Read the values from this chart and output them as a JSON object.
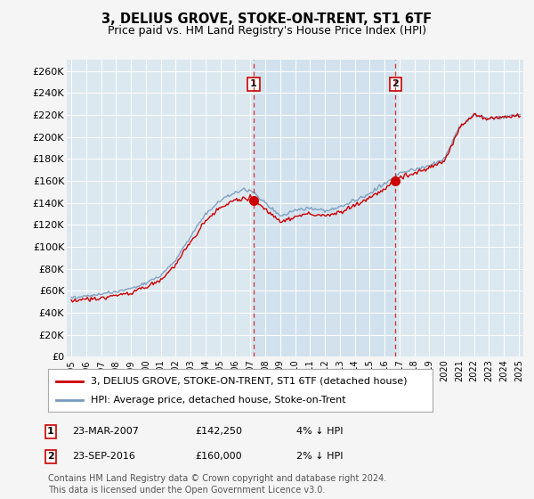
{
  "title": "3, DELIUS GROVE, STOKE-ON-TRENT, ST1 6TF",
  "subtitle": "Price paid vs. HM Land Registry's House Price Index (HPI)",
  "ylim": [
    0,
    270000
  ],
  "yticks": [
    0,
    20000,
    40000,
    60000,
    80000,
    100000,
    120000,
    140000,
    160000,
    180000,
    200000,
    220000,
    240000,
    260000
  ],
  "ytick_labels": [
    "£0",
    "£20K",
    "£40K",
    "£60K",
    "£80K",
    "£100K",
    "£120K",
    "£140K",
    "£160K",
    "£180K",
    "£200K",
    "£220K",
    "£240K",
    "£260K"
  ],
  "marker1_date": 2007.23,
  "marker1_price": 142250,
  "marker2_date": 2016.73,
  "marker2_price": 160000,
  "legend_line1": "3, DELIUS GROVE, STOKE-ON-TRENT, ST1 6TF (detached house)",
  "legend_line2": "HPI: Average price, detached house, Stoke-on-Trent",
  "footer": "Contains HM Land Registry data © Crown copyright and database right 2024.\nThis data is licensed under the Open Government Licence v3.0.",
  "line_color_property": "#cc0000",
  "line_color_hpi": "#7799bb",
  "bg_chart": "#dce8f0",
  "bg_highlight": "#e4eff6",
  "bg_figure": "#f5f5f5",
  "grid_color": "#ffffff",
  "marker_color": "#cc0000",
  "table1_num": "1",
  "table1_date": "23-MAR-2007",
  "table1_price": "£142,250",
  "table1_pct": "4% ↓ HPI",
  "table2_num": "2",
  "table2_date": "23-SEP-2016",
  "table2_price": "£160,000",
  "table2_pct": "2% ↓ HPI"
}
